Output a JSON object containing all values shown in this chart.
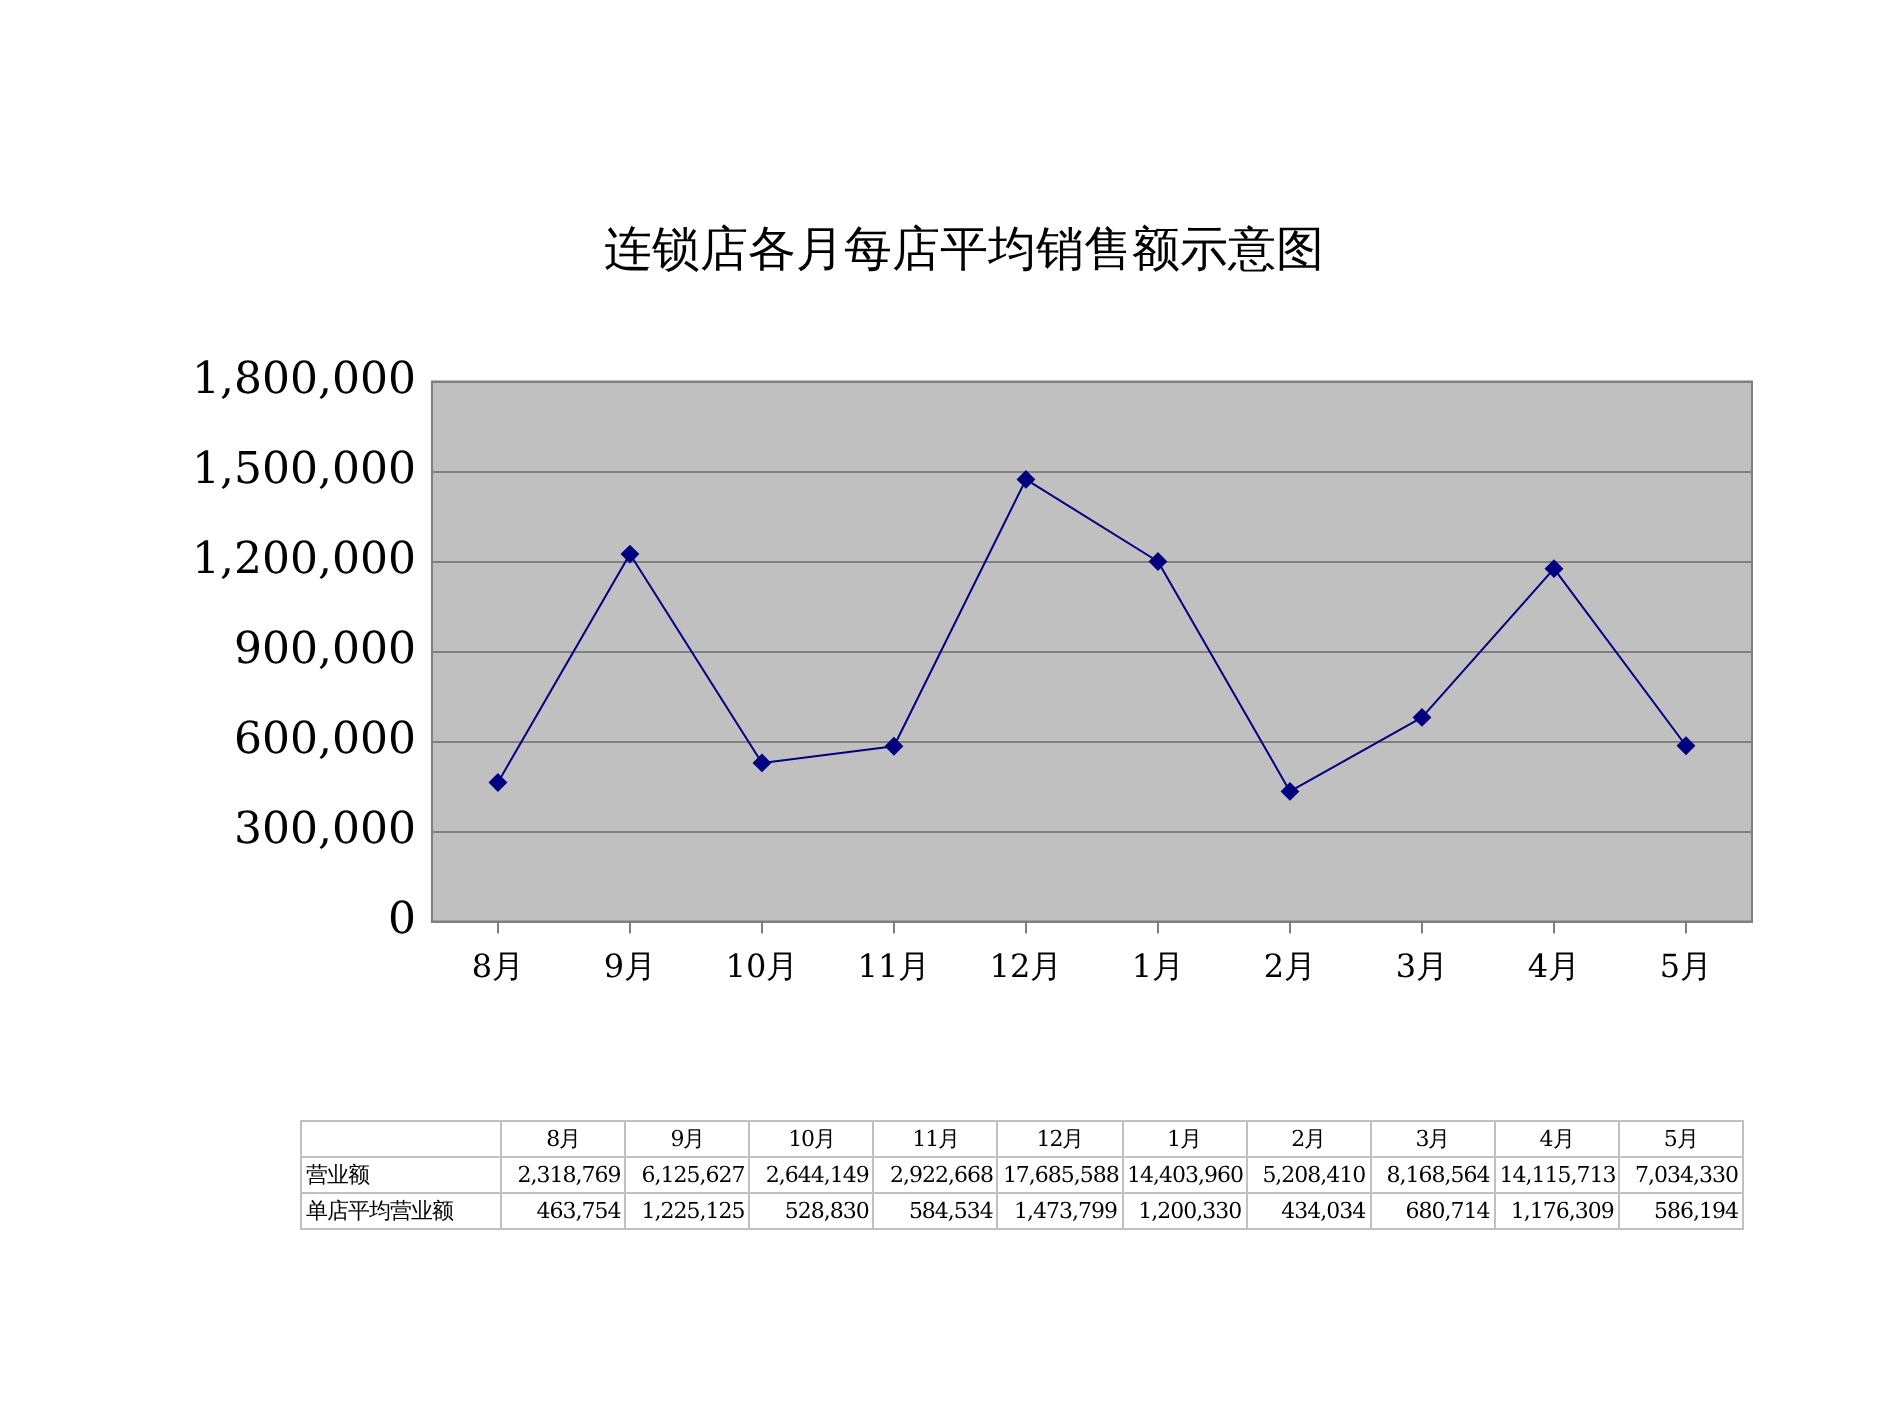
{
  "chart_data": {
    "type": "line",
    "title": "连锁店各月每店平均销售额示意图",
    "categories": [
      "8月",
      "9月",
      "10月",
      "11月",
      "12月",
      "1月",
      "2月",
      "3月",
      "4月",
      "5月"
    ],
    "series": [
      {
        "color": "#000080",
        "values": [
          463754,
          1225125,
          528830,
          584534,
          1473799,
          1200330,
          434034,
          680714,
          1176309,
          586194
        ]
      }
    ],
    "ylim": [
      0,
      1800000
    ],
    "yticks": [
      {
        "value": 0,
        "label": "0"
      },
      {
        "value": 300000,
        "label": "300,000"
      },
      {
        "value": 600000,
        "label": "600,000"
      },
      {
        "value": 900000,
        "label": "900,000"
      },
      {
        "value": 1200000,
        "label": "1,200,000"
      },
      {
        "value": 1500000,
        "label": "1,500,000"
      },
      {
        "value": 1800000,
        "label": "1,800,000"
      }
    ],
    "grid": "y",
    "legend": false,
    "marker": "diamond",
    "line_style": "solid",
    "annotations": [
      "营业额",
      "2,318,769",
      "6,125,627",
      "2,644,149",
      "2,922,668",
      "17,685,588",
      "14,403,960",
      "5,208,410",
      "8,168,564",
      "14,115,713",
      "7,034,330",
      "单店平均营业额",
      "463,754",
      "1,225,125",
      "528,830",
      "584,534",
      "1,473,799",
      "1,200,330",
      "434,034",
      "680,714",
      "1,176,309",
      "586,194"
    ]
  }
}
